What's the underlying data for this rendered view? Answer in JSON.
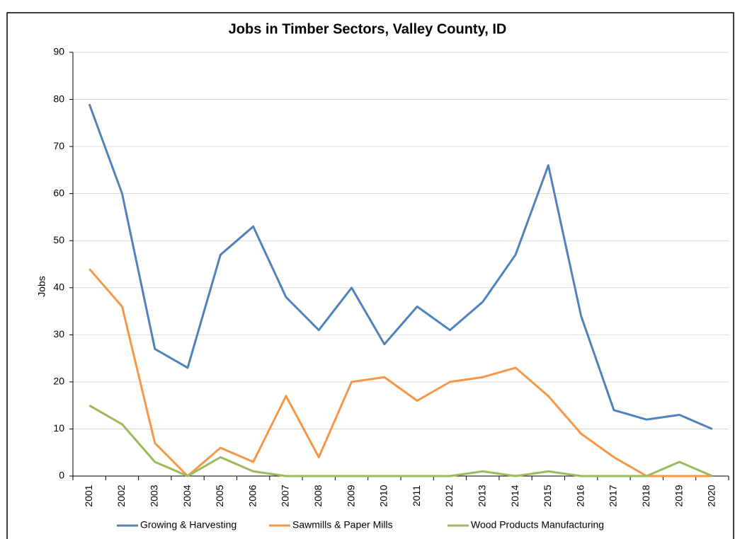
{
  "chart_data": {
    "type": "line",
    "title": "Jobs in Timber Sectors, Valley County, ID",
    "y_label": "Jobs",
    "categories": [
      "2001",
      "2002",
      "2003",
      "2004",
      "2005",
      "2006",
      "2007",
      "2008",
      "2009",
      "2010",
      "2011",
      "2012",
      "2013",
      "2014",
      "2015",
      "2016",
      "2017",
      "2018",
      "2019",
      "2020"
    ],
    "series": [
      {
        "name": "Growing & Harvesting",
        "color": "#4f81bd",
        "values": [
          79,
          60,
          27,
          23,
          47,
          53,
          38,
          31,
          40,
          28,
          36,
          31,
          37,
          47,
          66,
          34,
          14,
          12,
          13,
          10
        ]
      },
      {
        "name": "Sawmills & Paper Mills",
        "color": "#f79646",
        "values": [
          44,
          36,
          7,
          0,
          6,
          3,
          17,
          4,
          20,
          21,
          16,
          20,
          21,
          23,
          17,
          9,
          4,
          0,
          0,
          0
        ]
      },
      {
        "name": "Wood Products Manufacturing",
        "color": "#9bbb59",
        "values": [
          15,
          11,
          3,
          0,
          4,
          1,
          0,
          0,
          0,
          0,
          0,
          0,
          1,
          0,
          1,
          0,
          0,
          0,
          3,
          0
        ]
      }
    ],
    "ylim": [
      0,
      90
    ],
    "yticks": [
      0,
      10,
      20,
      30,
      40,
      50,
      60,
      70,
      80,
      90
    ],
    "grid": true,
    "legend": "bottom"
  }
}
